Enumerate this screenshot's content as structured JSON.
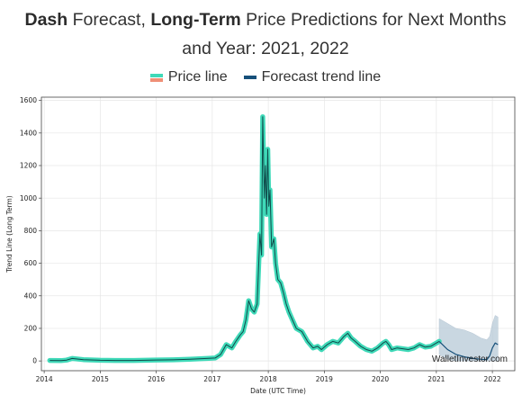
{
  "title": {
    "brand": "Dash",
    "part1": " Forecast, ",
    "bold2": "Long-Term",
    "part2": " Price Predictions for Next Months",
    "line2": "and Year: 2021, 2022"
  },
  "legend": {
    "price_label": "Price line",
    "forecast_label": "Forecast trend line"
  },
  "colors": {
    "price_line": "#3fd9b8",
    "price_line_dark": "#0e4a4a",
    "legend_price_bottom": "#ef8f76",
    "forecast_line": "#16507a",
    "forecast_band": "#b8cad8",
    "grid": "#e6e6e6"
  },
  "watermark": "WalletInvestor.com",
  "chart_data": {
    "type": "line",
    "xlabel": "Date (UTC Time)",
    "ylabel": "Trend Line (Long Term)",
    "xlim": [
      2013.95,
      2022.4
    ],
    "ylim": [
      -60,
      1620
    ],
    "x_ticks": [
      "2014",
      "2015",
      "2016",
      "2017",
      "2018",
      "2019",
      "2020",
      "2021",
      "2022"
    ],
    "y_ticks": [
      0,
      200,
      400,
      600,
      800,
      1000,
      1200,
      1400,
      1600
    ],
    "grid": true,
    "series": [
      {
        "name": "Price line",
        "x": [
          2014.1,
          2014.3,
          2014.4,
          2014.5,
          2014.7,
          2015.0,
          2015.3,
          2015.6,
          2016.0,
          2016.3,
          2016.6,
          2016.9,
          2017.05,
          2017.15,
          2017.25,
          2017.35,
          2017.42,
          2017.5,
          2017.55,
          2017.6,
          2017.65,
          2017.7,
          2017.75,
          2017.8,
          2017.85,
          2017.88,
          2017.9,
          2017.93,
          2017.95,
          2017.97,
          2017.99,
          2018.01,
          2018.03,
          2018.06,
          2018.1,
          2018.13,
          2018.17,
          2018.22,
          2018.27,
          2018.32,
          2018.37,
          2018.42,
          2018.5,
          2018.6,
          2018.7,
          2018.8,
          2018.88,
          2018.95,
          2019.05,
          2019.15,
          2019.25,
          2019.35,
          2019.42,
          2019.48,
          2019.55,
          2019.65,
          2019.75,
          2019.85,
          2019.95,
          2020.05,
          2020.1,
          2020.15,
          2020.2,
          2020.3,
          2020.4,
          2020.5,
          2020.6,
          2020.7,
          2020.8,
          2020.9,
          2021.0,
          2021.05
        ],
        "y": [
          3,
          2,
          5,
          15,
          8,
          4,
          3,
          3,
          6,
          7,
          10,
          15,
          18,
          40,
          100,
          80,
          120,
          160,
          180,
          250,
          370,
          320,
          300,
          350,
          780,
          650,
          1500,
          1000,
          1200,
          900,
          1300,
          950,
          1050,
          700,
          750,
          600,
          500,
          480,
          420,
          350,
          300,
          260,
          200,
          180,
          120,
          80,
          90,
          70,
          100,
          120,
          110,
          150,
          170,
          140,
          120,
          90,
          70,
          60,
          80,
          110,
          120,
          100,
          70,
          80,
          75,
          70,
          80,
          100,
          85,
          90,
          110,
          120
        ]
      },
      {
        "name": "Forecast trend line",
        "x": [
          2021.05,
          2021.2,
          2021.35,
          2021.5,
          2021.65,
          2021.8,
          2021.9,
          2021.95,
          2022.0,
          2022.05,
          2022.1
        ],
        "y": [
          120,
          70,
          40,
          25,
          15,
          10,
          8,
          30,
          80,
          110,
          100
        ],
        "upper": [
          260,
          230,
          200,
          190,
          170,
          140,
          130,
          150,
          230,
          280,
          270
        ],
        "lower": [
          40,
          10,
          0,
          0,
          0,
          0,
          0,
          0,
          0,
          0,
          0
        ]
      }
    ]
  }
}
